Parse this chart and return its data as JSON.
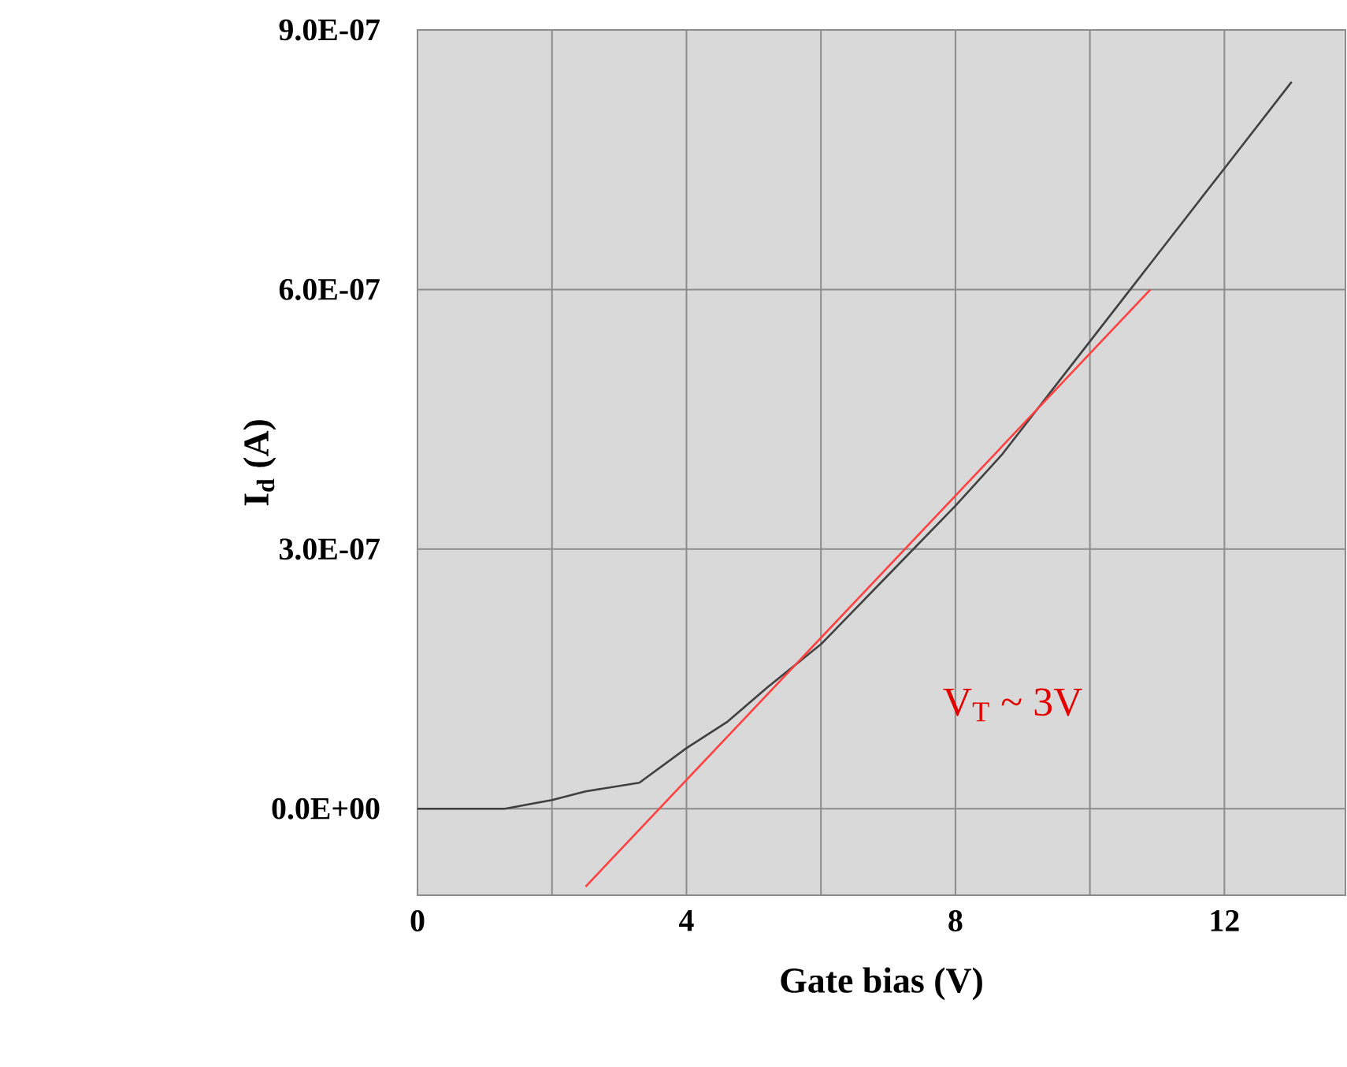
{
  "chart_data": {
    "type": "line",
    "xlabel": "Gate bias (V)",
    "ylabel": "I$_{d}$ (A)",
    "xlim": [
      0,
      13.8
    ],
    "ylim": [
      -1e-07,
      9e-07
    ],
    "xticks": [
      0,
      {
        "value": 2,
        "label": null
      },
      4,
      {
        "value": 6,
        "label": null
      },
      8,
      {
        "value": 10,
        "label": null
      },
      12
    ],
    "yticks": [
      {
        "value": 0,
        "label": "0.0E+00"
      },
      {
        "value": 3e-07,
        "label": "3.0E-07"
      },
      {
        "value": 6e-07,
        "label": "6.0E-07"
      },
      {
        "value": 9e-07,
        "label": "9.0E-07"
      }
    ],
    "grid": true,
    "marker": "none",
    "series": [
      {
        "color": "#404040",
        "x": [
          0,
          1.3,
          2.0,
          2.5,
          3.3,
          4.0,
          4.6,
          5.2,
          6.0,
          7.0,
          8.0,
          8.7,
          9.4,
          10.0,
          10.6,
          11.0,
          12.0,
          13.0
        ],
        "values": [
          0,
          0,
          1e-08,
          2e-08,
          3e-08,
          7e-08,
          1e-07,
          1.4e-07,
          1.9e-07,
          2.7e-07,
          3.5e-07,
          4.1e-07,
          4.8e-07,
          5.4e-07,
          6e-07,
          6.4e-07,
          7.4e-07,
          8.4e-07
        ]
      },
      {
        "color": "#ff4040",
        "x": [
          2.5,
          10.9
        ],
        "values": [
          -9e-08,
          6e-07
        ]
      }
    ],
    "annotations": [
      "V$_{T}$ ~ 3V"
    ]
  }
}
